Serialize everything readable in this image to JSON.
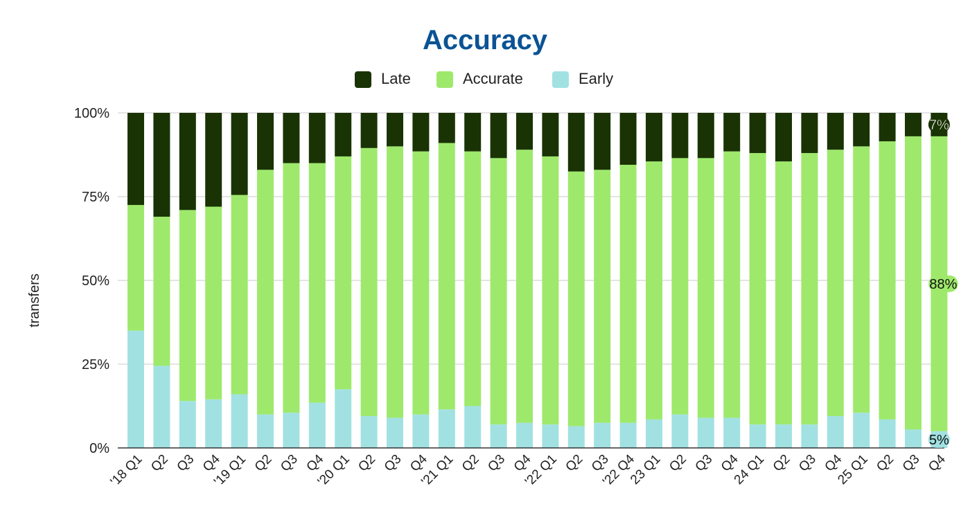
{
  "chart_data": {
    "type": "bar",
    "stacked": true,
    "title": "Accuracy",
    "ylabel": "transfers",
    "xlabel": "",
    "ylim": [
      0,
      100
    ],
    "yticks": [
      "0%",
      "25%",
      "50%",
      "75%",
      "100%"
    ],
    "grid": true,
    "legend_position": "top",
    "categories": [
      "'18 Q1",
      "Q2",
      "Q3",
      "Q4",
      "'19 Q1",
      "Q2",
      "Q3",
      "Q4",
      "'20 Q1",
      "Q2",
      "Q3",
      "Q4",
      "'21 Q1",
      "Q2",
      "Q3",
      "Q4",
      "'22 Q1",
      "Q2",
      "Q3",
      "'22 Q4",
      "23 Q1",
      "Q2",
      "Q3",
      "Q4",
      "24 Q1",
      "Q2",
      "Q3",
      "Q4",
      "25 Q1",
      "Q2",
      "Q3",
      "Q4"
    ],
    "series": [
      {
        "name": "Early",
        "color": "#a2e1e2",
        "values": [
          35,
          24.5,
          14,
          14.5,
          16,
          10,
          10.5,
          13.5,
          17.5,
          9.5,
          9,
          10,
          11.5,
          12.5,
          7,
          7.5,
          7,
          6.5,
          7.5,
          7.5,
          8.5,
          10,
          9,
          9,
          7,
          7,
          7,
          9.5,
          10.5,
          8.5,
          5.5,
          5
        ]
      },
      {
        "name": "Accurate",
        "color": "#9ee96c",
        "values": [
          37.5,
          44.5,
          57,
          57.5,
          59.5,
          73,
          74.5,
          71.5,
          69.5,
          80,
          81,
          78.5,
          79.5,
          76,
          79.5,
          81.5,
          80,
          76,
          75.5,
          77,
          77,
          76.5,
          77.5,
          79.5,
          81,
          78.5,
          81,
          79.5,
          79.5,
          83,
          87.5,
          88
        ]
      },
      {
        "name": "Late",
        "color": "#1a3304",
        "values": [
          27.5,
          31,
          29,
          28,
          24.5,
          17,
          15,
          15,
          13,
          10.5,
          10,
          11.5,
          9,
          11.5,
          13.5,
          11,
          13,
          17.5,
          17,
          15.5,
          14.5,
          13.5,
          13.5,
          11.5,
          12,
          14.5,
          12,
          11,
          10,
          8.5,
          7,
          7
        ]
      }
    ],
    "legend_order": [
      "Late",
      "Accurate",
      "Early"
    ],
    "annotations": [
      {
        "series": "Late",
        "category_index": 31,
        "text": "7%"
      },
      {
        "series": "Accurate",
        "category_index": 31,
        "text": "88%"
      },
      {
        "series": "Early",
        "category_index": 31,
        "text": "5%"
      }
    ]
  }
}
